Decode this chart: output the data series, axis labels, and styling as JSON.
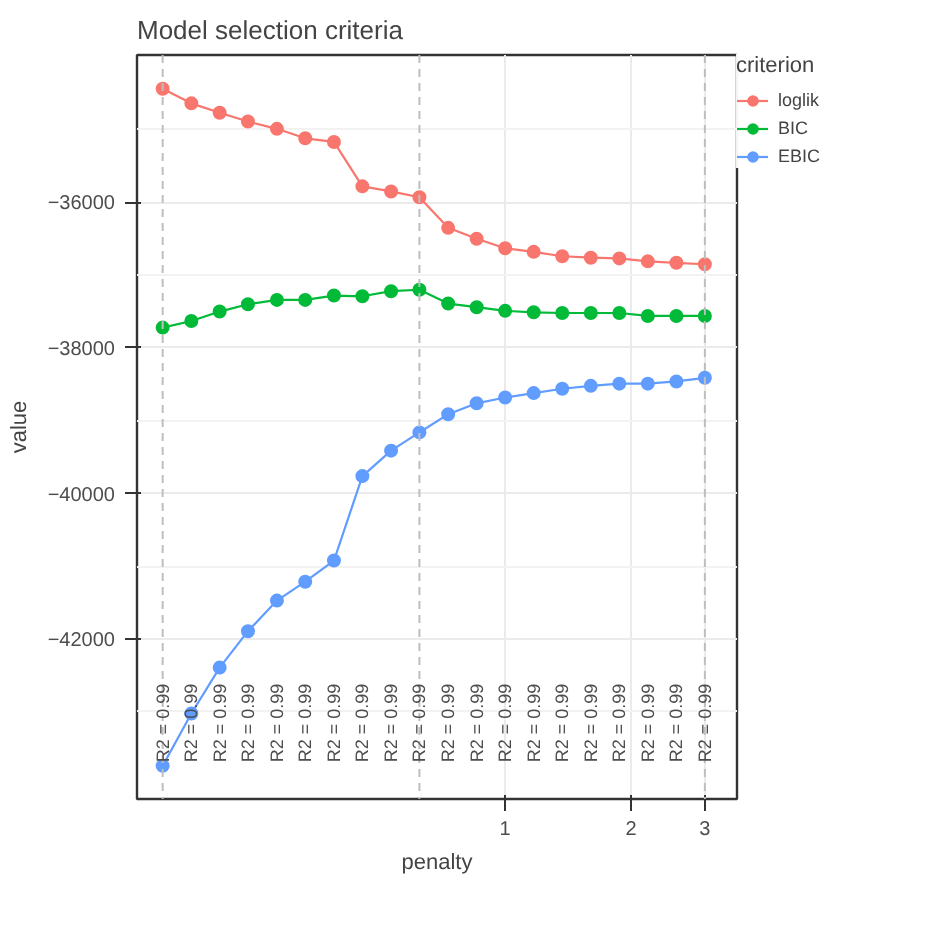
{
  "chart_data": {
    "type": "line",
    "title": "Model selection criteria",
    "xlabel": "penalty",
    "ylabel": "value",
    "legend_title": "criterion",
    "x": [
      0.152,
      0.178,
      0.208,
      0.243,
      0.285,
      0.333,
      0.39,
      0.456,
      0.534,
      0.624,
      0.731,
      0.855,
      1.0,
      1.17,
      1.369,
      1.602,
      1.874,
      2.192,
      2.565,
      3.0
    ],
    "series": [
      {
        "name": "loglik",
        "color": "#f8766d",
        "values": [
          -34440,
          -34640,
          -34770,
          -34890,
          -34990,
          -35120,
          -35170,
          -35780,
          -35850,
          -35930,
          -36350,
          -36500,
          -36630,
          -36680,
          -36740,
          -36760,
          -36770,
          -36810,
          -36830,
          -36850
        ]
      },
      {
        "name": "BIC",
        "color": "#00ba38",
        "values": [
          -37720,
          -37630,
          -37500,
          -37400,
          -37340,
          -37340,
          -37280,
          -37290,
          -37220,
          -37200,
          -37390,
          -37440,
          -37490,
          -37510,
          -37520,
          -37520,
          -37520,
          -37560,
          -37560,
          -37560
        ]
      },
      {
        "name": "EBIC",
        "color": "#619cff",
        "values": [
          -43740,
          -43020,
          -42390,
          -41890,
          -41470,
          -41210,
          -40920,
          -39760,
          -39410,
          -39160,
          -38910,
          -38760,
          -38680,
          -38620,
          -38560,
          -38520,
          -38490,
          -38490,
          -38460,
          -38410
        ]
      }
    ],
    "log": "x",
    "xlim": [
      0.132,
      3.58
    ],
    "xticks": [
      1,
      2,
      3
    ],
    "ylim": [
      -44195,
      -33976
    ],
    "yticks": [
      -42000,
      -40000,
      -38000,
      -36000
    ],
    "ref_lines": [
      {
        "axis": "x",
        "value": 0.152,
        "color": "#bebebe",
        "line_style": "dashed"
      },
      {
        "axis": "x",
        "value": 0.624,
        "color": "#bebebe",
        "line_style": "dashed"
      },
      {
        "axis": "x",
        "value": 3.0,
        "color": "#bebebe",
        "line_style": "dashed"
      }
    ],
    "annotations": [
      "R2 = 0.99",
      "R2 = 0.99",
      "R2 = 0.99",
      "R2 = 0.99",
      "R2 = 0.99",
      "R2 = 0.99",
      "R2 = 0.99",
      "R2 = 0.99",
      "R2 = 0.99",
      "R2 = 0.99",
      "R2 = 0.99",
      "R2 = 0.99",
      "R2 = 0.99",
      "R2 = 0.99",
      "R2 = 0.99",
      "R2 = 0.99",
      "R2 = 0.99",
      "R2 = 0.99",
      "R2 = 0.99",
      "R2 = 0.99"
    ],
    "grid": true,
    "legend": "right",
    "marker": "circle",
    "line_style": "solid"
  }
}
